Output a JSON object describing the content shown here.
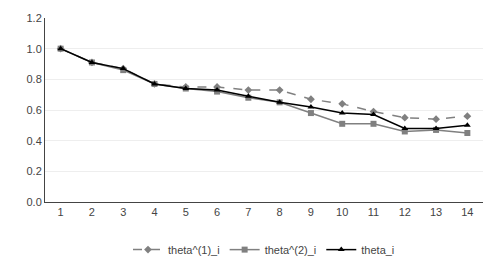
{
  "chart_data": {
    "type": "line",
    "x": [
      1,
      2,
      3,
      4,
      5,
      6,
      7,
      8,
      9,
      10,
      11,
      12,
      13,
      14
    ],
    "series": [
      {
        "name": "theta^(1)_i",
        "color": "#808080",
        "marker": "diamond",
        "line_style": "dashed",
        "values": [
          1.0,
          0.91,
          0.87,
          0.77,
          0.75,
          0.75,
          0.73,
          0.73,
          0.67,
          0.64,
          0.59,
          0.55,
          0.54,
          0.56
        ]
      },
      {
        "name": "theta^(2)_i",
        "color": "#808080",
        "marker": "square",
        "line_style": "solid",
        "values": [
          1.0,
          0.91,
          0.86,
          0.77,
          0.74,
          0.72,
          0.68,
          0.65,
          0.58,
          0.51,
          0.51,
          0.46,
          0.47,
          0.45
        ]
      },
      {
        "name": "theta_i",
        "color": "#000000",
        "marker": "triangle-up",
        "line_style": "solid",
        "values": [
          1.0,
          0.91,
          0.87,
          0.77,
          0.74,
          0.73,
          0.69,
          0.65,
          0.62,
          0.58,
          0.57,
          0.48,
          0.48,
          0.5
        ]
      }
    ],
    "xlim": [
      0.5,
      14.5
    ],
    "xticks": [
      1,
      2,
      3,
      4,
      5,
      6,
      7,
      8,
      9,
      10,
      11,
      12,
      13,
      14
    ],
    "ylim": [
      0.0,
      1.2
    ],
    "yticks": [
      {
        "value": 0.0,
        "label": "0.0"
      },
      {
        "value": 0.2,
        "label": "0.2"
      },
      {
        "value": 0.4,
        "label": "0.4"
      },
      {
        "value": 0.6,
        "label": "0.6"
      },
      {
        "value": 0.8,
        "label": "0.8"
      },
      {
        "value": 1.0,
        "label": "1.0"
      },
      {
        "value": 1.2,
        "label": "1.2"
      }
    ],
    "grid": true,
    "legend": "bottom"
  }
}
